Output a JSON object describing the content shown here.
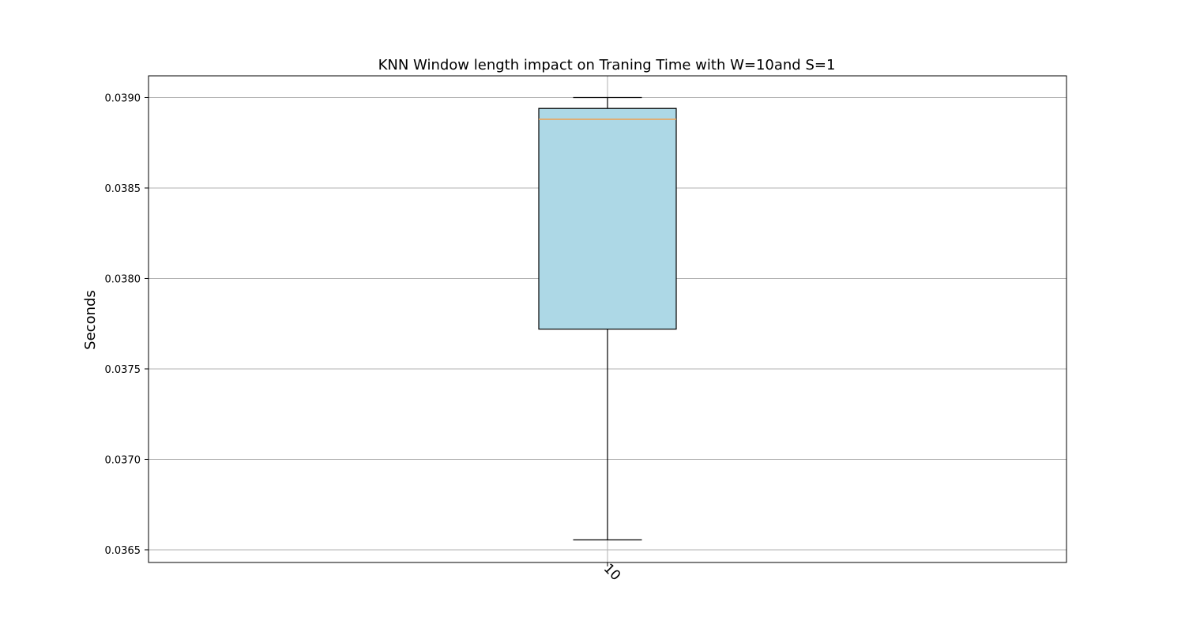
{
  "chart_data": {
    "type": "box",
    "title": "KNN Window length impact on Traning Time with W=10and S=1",
    "xlabel": "",
    "ylabel": "Seconds",
    "categories": [
      "10"
    ],
    "boxes": [
      {
        "category": "10",
        "whisker_low": 0.036555,
        "q1": 0.03772,
        "median": 0.03888,
        "q3": 0.03894,
        "whisker_high": 0.039
      }
    ],
    "yticks": [
      "0.0365",
      "0.0370",
      "0.0375",
      "0.0380",
      "0.0385",
      "0.0390"
    ],
    "ylim": [
      0.03643,
      0.03912
    ],
    "grid": true,
    "colors": {
      "box_fill": "#add8e6",
      "median": "#f0a050",
      "grid": "#b0b0b0",
      "edge": "#000000"
    }
  }
}
